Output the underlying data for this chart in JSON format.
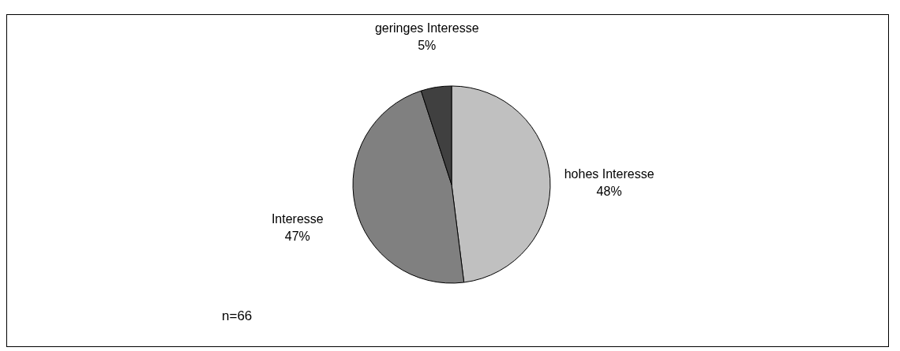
{
  "chart_data": {
    "type": "pie",
    "categories": [
      "hohes Interesse",
      "Interesse",
      "geringes Interesse"
    ],
    "values": [
      48,
      47,
      5
    ],
    "value_labels": [
      "48%",
      "47%",
      "5%"
    ],
    "colors": [
      "#c0c0c0",
      "#808080",
      "#404040"
    ],
    "legend": false,
    "annotations": [
      "n=66"
    ]
  }
}
